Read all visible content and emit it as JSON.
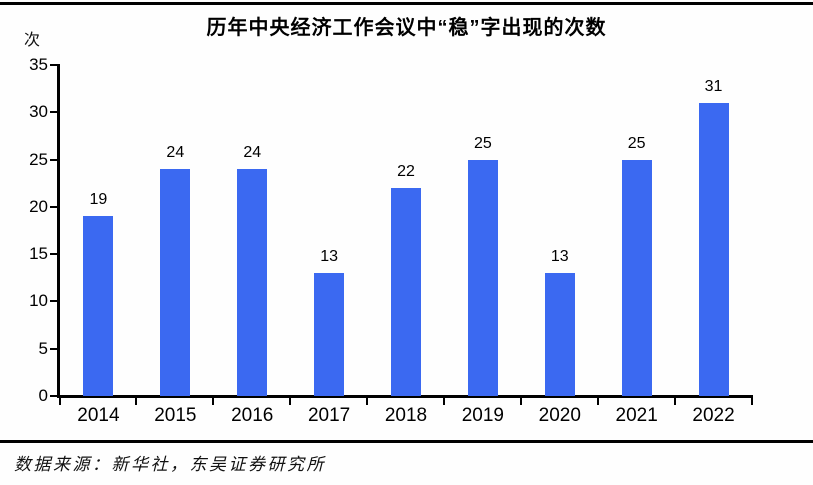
{
  "chart_data": {
    "type": "bar",
    "title": "历年中央经济工作会议中“稳”字出现的次数",
    "unit_label": "次",
    "categories": [
      "2014",
      "2015",
      "2016",
      "2017",
      "2018",
      "2019",
      "2020",
      "2021",
      "2022"
    ],
    "values": [
      19,
      24,
      24,
      13,
      22,
      25,
      13,
      25,
      31
    ],
    "xlabel": "",
    "ylabel": "次",
    "ylim": [
      0,
      35
    ],
    "ytick_step": 5,
    "yticks": [
      0,
      5,
      10,
      15,
      20,
      25,
      30,
      35
    ],
    "grid": false,
    "legend": false,
    "data_labels": true,
    "bar_color": "#3b69f1",
    "axis_color": "#000000",
    "text_color": "#000000"
  },
  "footer": {
    "source": "数据来源：新华社，东吴证券研究所"
  }
}
